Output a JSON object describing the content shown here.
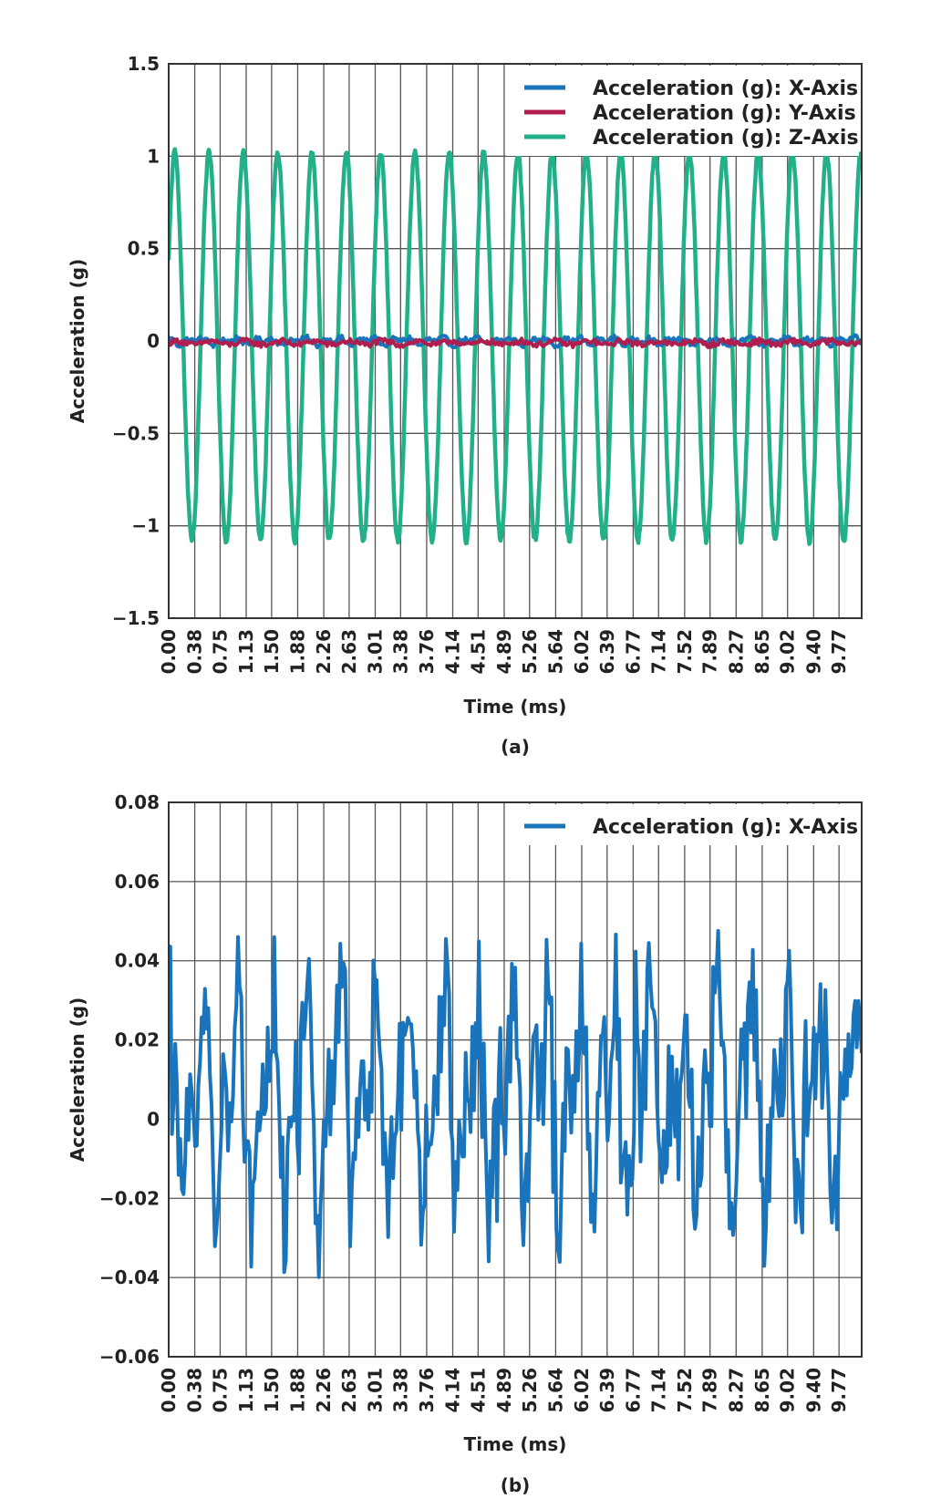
{
  "chart_data": [
    {
      "type": "line",
      "caption": "(a)",
      "xlabel": "Time (ms)",
      "ylabel": "Acceleration (g)",
      "x_ticks": [
        "0.00",
        "0.38",
        "0.75",
        "1.13",
        "1.50",
        "1.88",
        "2.26",
        "2.63",
        "3.01",
        "3.38",
        "3.76",
        "4.14",
        "4.51",
        "4.89",
        "5.26",
        "5.64",
        "6.02",
        "6.39",
        "6.77",
        "7.14",
        "7.52",
        "7.89",
        "8.27",
        "8.65",
        "9.02",
        "9.40",
        "9.77"
      ],
      "y_ticks": [
        "1.5",
        "1",
        "0.5",
        "0",
        "−0.5",
        "−1",
        "−1.5"
      ],
      "y_tick_values": [
        1.5,
        1,
        0.5,
        0,
        -0.5,
        -1,
        -1.5
      ],
      "xlim": [
        0,
        10.1
      ],
      "ylim": [
        -1.5,
        1.5
      ],
      "grid": true,
      "legend_position": "top-right",
      "series": [
        {
          "name": "Acceleration (g): X-Axis",
          "color": "#1a74bb",
          "kind": "x_noise",
          "frequency_khz": 2.0,
          "amplitude_g": 0.03
        },
        {
          "name": "Acceleration (g): Y-Axis",
          "color": "#b01e4f",
          "kind": "y_noise",
          "frequency_khz": 2.0,
          "amplitude_g": 0.025
        },
        {
          "name": "Acceleration (g): Z-Axis",
          "color": "#21b087",
          "kind": "sine",
          "frequency_khz": 2.0,
          "amplitude_g": 1.05,
          "offset_g": -0.03
        }
      ]
    },
    {
      "type": "line",
      "caption": "(b)",
      "xlabel": "Time (ms)",
      "ylabel": "Acceleration (g)",
      "x_ticks": [
        "0.00",
        "0.38",
        "0.75",
        "1.13",
        "1.50",
        "1.88",
        "2.26",
        "2.63",
        "3.01",
        "3.38",
        "3.76",
        "4.14",
        "4.51",
        "4.89",
        "5.26",
        "5.64",
        "6.02",
        "6.39",
        "6.77",
        "7.14",
        "7.52",
        "7.89",
        "8.27",
        "8.65",
        "9.02",
        "9.40",
        "9.77"
      ],
      "y_ticks": [
        "0.08",
        "0.06",
        "0.04",
        "0.02",
        "0",
        "−0.02",
        "−0.04",
        "−0.06"
      ],
      "y_tick_values": [
        0.08,
        0.06,
        0.04,
        0.02,
        0,
        -0.02,
        -0.04,
        -0.06
      ],
      "xlim": [
        0,
        10.1
      ],
      "ylim": [
        -0.06,
        0.08
      ],
      "grid": true,
      "legend_position": "top-right",
      "series": [
        {
          "name": "Acceleration (g): X-Axis",
          "color": "#1a74bb",
          "kind": "x_detail",
          "frequency_khz": 2.0,
          "amplitude_g": 0.04
        }
      ]
    }
  ]
}
